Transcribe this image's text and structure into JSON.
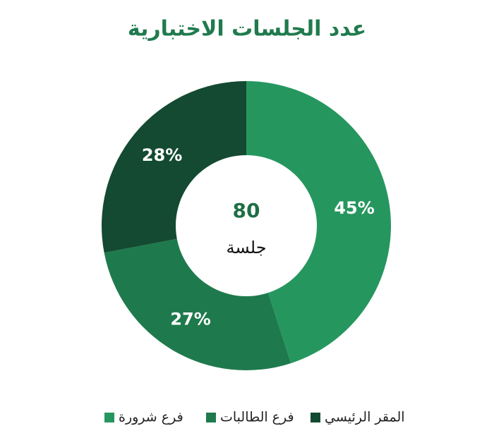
{
  "chart_data": {
    "type": "donut",
    "title": "عدد الجلسات الاختبارية",
    "categories": [
      "فرع شرورة",
      "فرع الطالبات",
      "المقر الرئيسي"
    ],
    "values": [
      45,
      27,
      28
    ],
    "value_labels": [
      "45%",
      "27%",
      "28%"
    ],
    "colors": [
      "#26965f",
      "#1e7a4c",
      "#134a31"
    ],
    "center_value": 80,
    "center_label": "جلسة",
    "title_color": "#1f7a4d",
    "legend": "bottom"
  }
}
